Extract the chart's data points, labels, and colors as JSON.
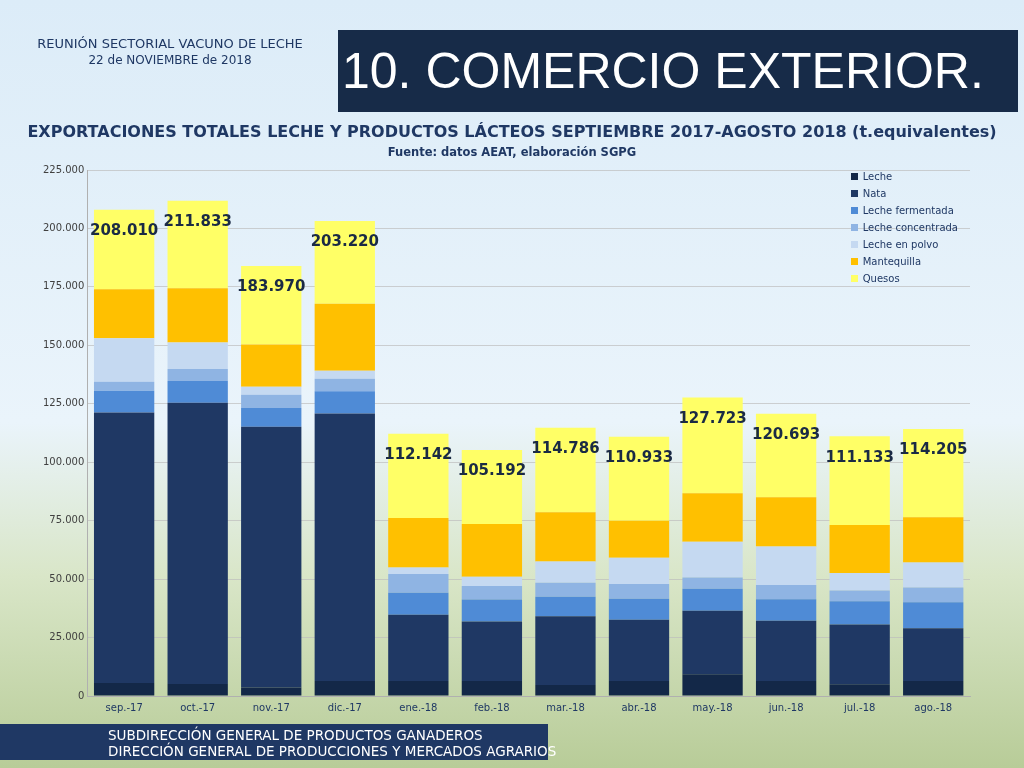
{
  "chart_data": {
    "type": "bar",
    "stacked": true,
    "title": "EXPORTACIONES TOTALES LECHE Y PRODUCTOS LÁCTEOS SEPTIEMBRE 2017-AGOSTO 2018 (t.equivalentes)",
    "subtitle": "Fuente: datos AEAT, elaboración SGPG",
    "annotations": [
      "REUNIÓN SECTORIAL VACUNO DE LECHE",
      "22 de NOVIEMBRE de 2018",
      "10. COMERCIO EXTERIOR.",
      "SUBDIRECCIÓN GENERAL DE PRODUCTOS GANADEROS",
      "DIRECCIÓN GENERAL DE PRODUCCIONES Y MERCADOS AGRARIOS"
    ],
    "categories": [
      "sep.-17",
      "oct.-17",
      "nov.-17",
      "dic.-17",
      "ene.-18",
      "feb.-18",
      "mar.-18",
      "abr.-18",
      "may.-18",
      "jun.-18",
      "jul.-18",
      "ago.-18"
    ],
    "series": [
      {
        "name": "Leche",
        "color": "#132848",
        "values": [
          5530,
          5100,
          3600,
          6430,
          6430,
          6430,
          4710,
          6430,
          9290,
          6430,
          5000,
          6430
        ]
      },
      {
        "name": "Nata",
        "color": "#1f3864",
        "values": [
          115760,
          120340,
          111560,
          114430,
          28280,
          25430,
          29430,
          26140,
          27140,
          25710,
          25570,
          22570
        ]
      },
      {
        "name": "Leche fermentada",
        "color": "#4f8bd6",
        "values": [
          9250,
          9260,
          8050,
          9510,
          9430,
          9430,
          8290,
          9000,
          9430,
          9290,
          10000,
          11140
        ]
      },
      {
        "name": "Leche concentrada",
        "color": "#8fb4e3",
        "values": [
          3860,
          5230,
          5660,
          5360,
          8000,
          5710,
          6000,
          6290,
          4850,
          6000,
          4570,
          6290
        ]
      },
      {
        "name": "Leche en polvo",
        "color": "#c5d9f1",
        "values": [
          18600,
          11310,
          3430,
          3430,
          2860,
          4000,
          9140,
          11280,
          15290,
          16570,
          7430,
          10710
        ]
      },
      {
        "name": "Mantequilla",
        "color": "#ffc000",
        "values": [
          21000,
          23230,
          18040,
          28580,
          21140,
          22570,
          21000,
          15860,
          20710,
          21000,
          20570,
          19290
        ]
      },
      {
        "name": "Quesos",
        "color": "#ffff66",
        "values": [
          34010,
          37363,
          33630,
          35480,
          36002,
          31622,
          36216,
          35933,
          41013,
          35693,
          37993,
          37775
        ]
      }
    ],
    "totals": [
      "208.010",
      "211.833",
      "183.970",
      "203.220",
      "112.142",
      "105.192",
      "114.786",
      "110.933",
      "127.723",
      "120.693",
      "111.133",
      "114.205"
    ],
    "ylim": [
      0,
      225000
    ],
    "yticks": [
      {
        "value": 0,
        "label": "0"
      },
      {
        "value": 25000,
        "label": "25.000"
      },
      {
        "value": 50000,
        "label": "50.000"
      },
      {
        "value": 75000,
        "label": "75.000"
      },
      {
        "value": 100000,
        "label": "100.000"
      },
      {
        "value": 125000,
        "label": "125.000"
      },
      {
        "value": 150000,
        "label": "150.000"
      },
      {
        "value": 175000,
        "label": "175.000"
      },
      {
        "value": 200000,
        "label": "200.000"
      },
      {
        "value": 225000,
        "label": "225.000"
      }
    ],
    "grid": "y",
    "legend": "top right"
  }
}
